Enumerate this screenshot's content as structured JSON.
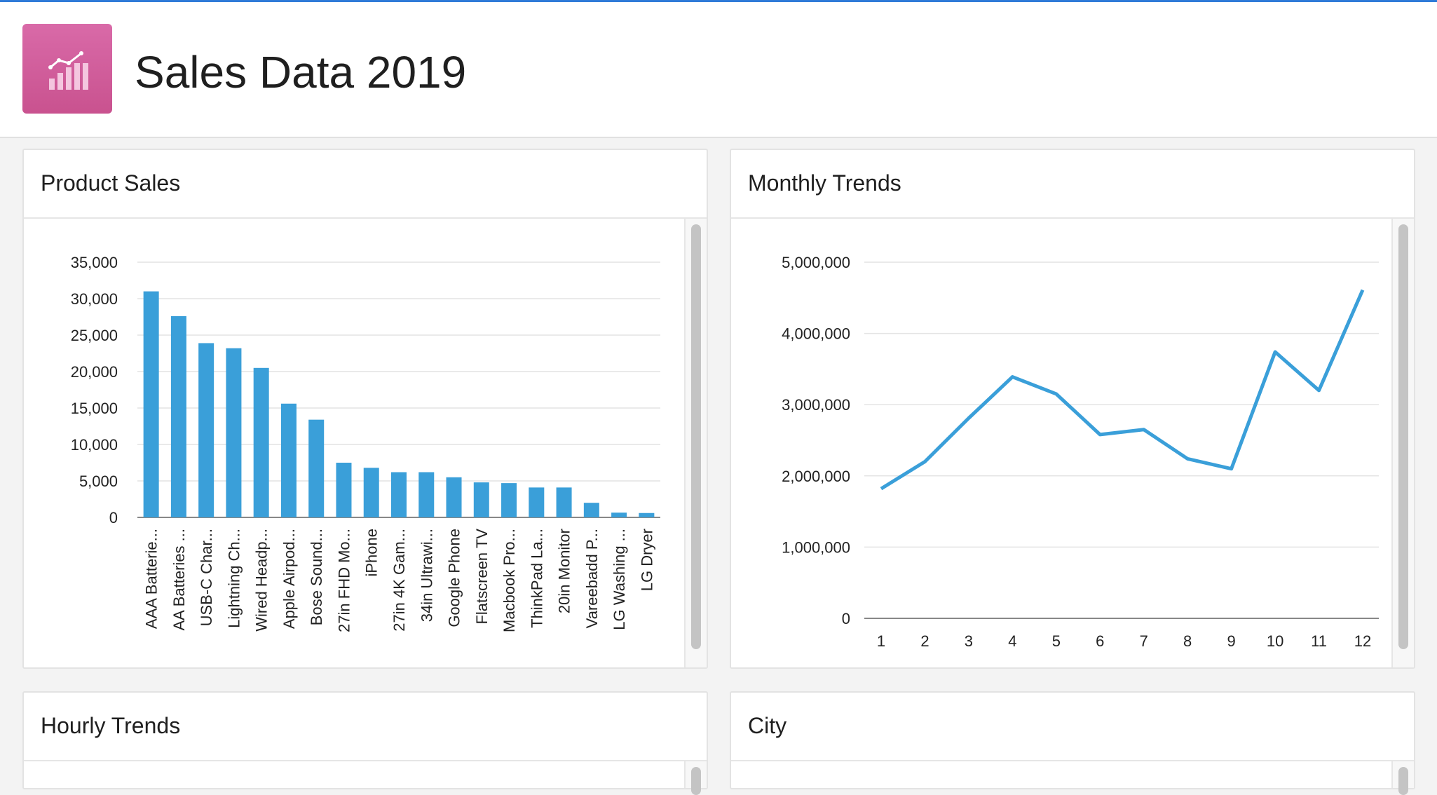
{
  "header": {
    "title": "Sales Data 2019",
    "icon": "bar-line-chart-icon",
    "icon_color": "#d062a0"
  },
  "accent_color": "#3a9fd9",
  "cards": {
    "product_sales": {
      "title": "Product Sales"
    },
    "monthly_trends": {
      "title": "Monthly Trends"
    },
    "hourly_trends": {
      "title": "Hourly Trends"
    },
    "city": {
      "title": "City"
    }
  },
  "chart_data": [
    {
      "type": "bar",
      "categories": [
        "AAA Batterie...",
        "AA Batteries ...",
        "USB-C Char...",
        "Lightning Ch...",
        "Wired Headp...",
        "Apple Airpod...",
        "Bose Sound...",
        "27in FHD Mo...",
        "iPhone",
        "27in 4K Gam...",
        "34in Ultrawi...",
        "Google Phone",
        "Flatscreen TV",
        "Macbook Pro...",
        "ThinkPad La...",
        "20in Monitor",
        "Vareebadd P...",
        "LG Washing ...",
        "LG Dryer"
      ],
      "values": [
        31000,
        27600,
        23900,
        23200,
        20500,
        15600,
        13400,
        7500,
        6800,
        6200,
        6200,
        5500,
        4800,
        4700,
        4100,
        4100,
        2000,
        650,
        600
      ],
      "ylim": [
        0,
        35000
      ],
      "yticks": [
        "0",
        "5,000",
        "10,000",
        "15,000",
        "20,000",
        "25,000",
        "30,000",
        "35,000"
      ],
      "grid": true
    },
    {
      "type": "line",
      "x": [
        "1",
        "2",
        "3",
        "4",
        "5",
        "6",
        "7",
        "8",
        "9",
        "10",
        "11",
        "12"
      ],
      "values": [
        1820000,
        2200000,
        2810000,
        3390000,
        3150000,
        2580000,
        2650000,
        2240000,
        2100000,
        3740000,
        3200000,
        4610000
      ],
      "ylim": [
        0,
        5000000
      ],
      "yticks": [
        "0",
        "1,000,000",
        "2,000,000",
        "3,000,000",
        "4,000,000",
        "5,000,000"
      ],
      "grid": true
    }
  ]
}
